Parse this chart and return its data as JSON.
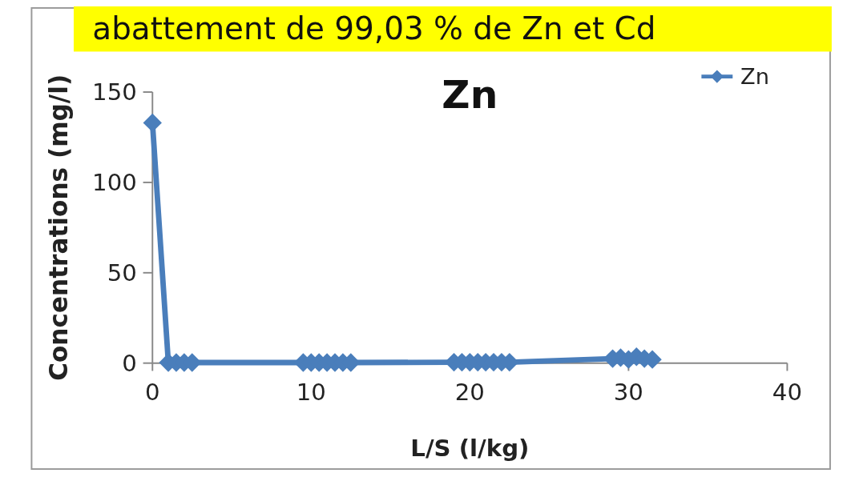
{
  "chart_data": {
    "type": "line",
    "title": "Zn",
    "xlabel": "L/S (l/kg)",
    "ylabel": "Concentrations (mg/l)",
    "annotations": [
      "abattement de 99,03 % de Zn et Cd"
    ],
    "series": [
      {
        "name": "Zn",
        "color": "#4a7ebb",
        "x": [
          0,
          1,
          1.5,
          2,
          2.5,
          9.5,
          10,
          10.5,
          11,
          11.5,
          12,
          12.5,
          19,
          19.5,
          20,
          20.5,
          21,
          21.5,
          22,
          22.5,
          29,
          29.5,
          30,
          30.5,
          31,
          31.5
        ],
        "values": [
          133,
          0.3,
          0.3,
          0.3,
          0.3,
          0.3,
          0.3,
          0.3,
          0.3,
          0.3,
          0.3,
          0.3,
          0.5,
          0.5,
          0.5,
          0.5,
          0.5,
          0.5,
          0.5,
          0.5,
          2.5,
          3,
          2,
          3.5,
          2.5,
          2
        ]
      }
    ],
    "xlim": [
      0,
      40
    ],
    "xticks": [
      0,
      10,
      20,
      30,
      40
    ],
    "ylim": [
      0,
      150
    ],
    "yticks": [
      0,
      50,
      100,
      150
    ],
    "grid": false,
    "legend": "top right",
    "marker": "diamond",
    "line_style": "solid"
  }
}
